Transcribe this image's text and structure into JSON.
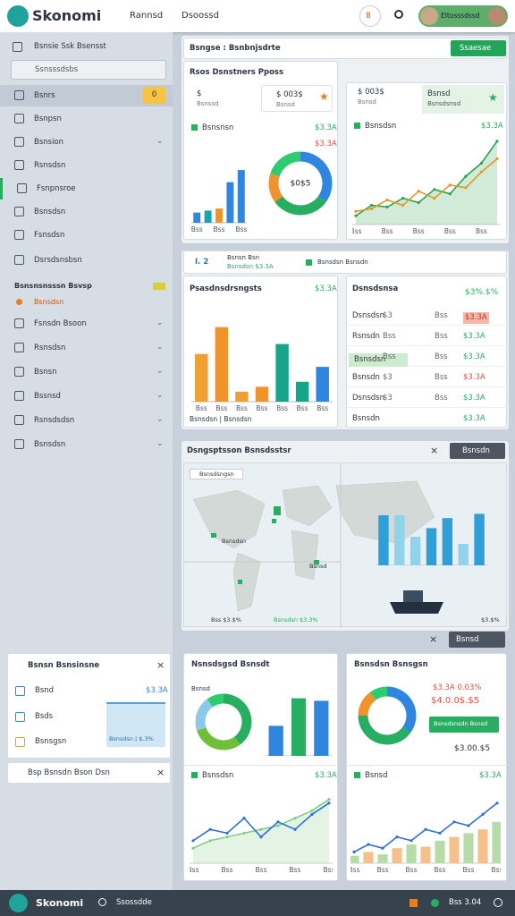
{
  "topbar": {
    "brand": "Skonomi",
    "nav": [
      "Rannsd",
      "Dsoossd"
    ],
    "badge": "8",
    "user": "Eltosssdssd"
  },
  "sidebar": {
    "heading": "Bsnsie Ssk Bsensst",
    "search": "Ssnsssdsbs",
    "items": [
      {
        "label": "Bsnrs",
        "badge": "0"
      },
      {
        "label": "Bsnpsn"
      },
      {
        "label": "Bsnsion"
      },
      {
        "label": "Rsnsdsn"
      },
      {
        "label": "Fsnpnsroe"
      },
      {
        "label": "Bsnsdsn"
      },
      {
        "label": "Fsnsdsn"
      },
      {
        "label": "Dsrsdsnsbsn"
      }
    ],
    "section": "Bsnsnsnsssn Bsvsp",
    "section_item": "Bsnsdsn",
    "items2": [
      "Fsnsdn Bsoon",
      "Rsnsdsn",
      "Bsnsn",
      "Bssnsd",
      "Rsnsdsdsn",
      "Bsnsdsn"
    ],
    "widget": {
      "title": "Bsnsn Bsnsinsne",
      "rows": [
        {
          "label": "Bsnd",
          "value": "$3.3A"
        },
        {
          "label": "Bsds"
        },
        {
          "label": "Bsnsgsn"
        }
      ],
      "bar": "Bsnsdsn | $.3%"
    },
    "search2": "Bsp Bsnsdn Bson Dsn"
  },
  "panel_a": {
    "header": "Bsngse : Bsnbnjsdrte",
    "button": "Ssaesae",
    "title": "Rsos Dsnstners Pposs",
    "stats": [
      {
        "value": "$",
        "sub": "Bsnssd"
      },
      {
        "value": "$ 003$",
        "sub": "Bsnsd"
      },
      {
        "value": "$ 003$",
        "sub": "Bsnsd"
      },
      {
        "value": "Bsnsd",
        "sub": "Bsnsdsnsd"
      }
    ],
    "legend_left": {
      "label": "Bsnsnsn",
      "value": "$3.3A"
    },
    "donut_value": "$3.3A",
    "legend_right": {
      "label": "Bsnsdsn",
      "value": "$3.3A"
    }
  },
  "panel_b": {
    "header": "I. 2",
    "header_title": "Bsnsn Bsn",
    "header_sub": "Bsnsdsn $3.3A",
    "header_tag": "Bsnsdsn Bsnsdn",
    "title": "Psasdnsdrsngsts",
    "value": "$3.3A",
    "footer": "Bsnsdsn | Bsnsdsn",
    "table": {
      "title": "Dsnsdsnsa",
      "value": "$3%.$%",
      "rows": [
        [
          "Dsnsdsn",
          "$3",
          "Bss",
          "$3.3A"
        ],
        [
          "Rsnsdn",
          "Bss",
          "Bss",
          "$3.3A"
        ],
        [
          "Bsnsdsn",
          "Bss",
          "Bss",
          "$3.3A"
        ],
        [
          "Bsnsdn",
          "$3",
          "Bss",
          "$3.3A"
        ],
        [
          "Dsnsdsn",
          "$3",
          "Bss",
          "$3.3A"
        ],
        [
          "Bsnsdn",
          "",
          "",
          "$3.3A"
        ]
      ]
    }
  },
  "panel_c": {
    "header": "Dsngsptsson Bsnsdsstsr",
    "button": "Bsnsdn",
    "map_tag": "Bsnsdsngsn",
    "labels": [
      "Bsnsdsn",
      "Bsnsd"
    ],
    "legend": [
      "Bss $3.$%",
      "Bsnsdsn $3.3%",
      "$3.$%"
    ],
    "button2": "Bsnsd"
  },
  "panel_d": {
    "left_title": "Nsnsdsgsd Bsnsdt",
    "left_tag": "Bsnsd",
    "left_legend": {
      "label": "Bsnsdsn",
      "value": "$3.3A"
    },
    "right_title": "Bsnsdsn Bsnsgsn",
    "right_values": [
      "$3.3A 0.03%",
      "$4.0.0$.$5"
    ],
    "right_button": "Bsnsdsnsdn Bsnsd",
    "right_total": "$3.00.$5",
    "right_legend": {
      "label": "Bsnsd",
      "value": "$3.3A"
    }
  },
  "bottombar": {
    "brand": "Skonomi",
    "search": "Ssossdde",
    "status": "Bss 3.04"
  },
  "chart_data": [
    {
      "type": "bar",
      "values": [
        10,
        12,
        14,
        40,
        52
      ],
      "colors": [
        "#2e86de",
        "#17a2b8",
        "#f0932b",
        "#2e86de",
        "#2e86de"
      ],
      "ylim": [
        0,
        60
      ],
      "categories": [
        "Bss",
        null,
        "Bss",
        null,
        "Bss"
      ]
    },
    {
      "type": "donut",
      "values": [
        35,
        30,
        15,
        20
      ],
      "colors": [
        "#2e86de",
        "#27ae60",
        "#f0932b",
        "#2ecc71"
      ],
      "center": "$0$5"
    },
    {
      "type": "line",
      "categories": [
        "Bss",
        null,
        "Bss",
        null,
        "Bss",
        null,
        "Bss",
        null,
        "Bss",
        null
      ],
      "ylim": [
        0,
        100
      ],
      "area": true,
      "series": [
        {
          "color": "#2ea44f",
          "values": [
            10,
            22,
            20,
            30,
            25,
            40,
            35,
            55,
            70,
            95
          ]
        },
        {
          "color": "#e09a2b",
          "values": [
            15,
            18,
            28,
            22,
            38,
            30,
            45,
            42,
            60,
            75
          ]
        }
      ]
    },
    {
      "type": "bar",
      "values": [
        48,
        75,
        10,
        15,
        58,
        20,
        35
      ],
      "colors": [
        "#f0a030",
        "#f0932b",
        "#f0a030",
        "#f0932b",
        "#17a589",
        "#17a589",
        "#2e86de"
      ],
      "ylim": [
        0,
        90
      ],
      "categories": [
        "Bss",
        "Bss",
        "Bss",
        "Bss",
        "Bss",
        "Bss",
        "Bss"
      ]
    },
    {
      "type": "bar",
      "values": [
        70,
        70,
        40,
        52,
        66,
        30,
        72
      ],
      "colors": [
        "#2e9fd8",
        "#8fd3ec",
        "#8fd3ec",
        "#2e9fd8",
        "#2e9fd8",
        "#8fd3ec",
        "#2e9fd8"
      ],
      "ylim": [
        0,
        100
      ]
    },
    {
      "type": "donut",
      "values": [
        40,
        30,
        20,
        10
      ],
      "colors": [
        "#27ae60",
        "#6fbf3a",
        "#8cc8e8",
        "#2ecc71"
      ]
    },
    {
      "type": "bar",
      "values": [
        48,
        92,
        88
      ],
      "colors": [
        "#2e86de",
        "#27ae60",
        "#2e86de"
      ],
      "ylim": [
        0,
        100
      ]
    },
    {
      "type": "line",
      "ylim": [
        0,
        100
      ],
      "area": true,
      "categories": [
        "Bss",
        null,
        "Bss",
        null,
        "Bss",
        null,
        "Bss",
        null,
        "Bss"
      ],
      "series": [
        {
          "color": "#7fcf8a",
          "values": [
            20,
            30,
            35,
            40,
            45,
            50,
            60,
            70,
            85
          ]
        },
        {
          "color": "#2e6fd8",
          "values": [
            30,
            45,
            40,
            60,
            35,
            55,
            45,
            65,
            80
          ]
        }
      ]
    },
    {
      "type": "donut",
      "values": [
        35,
        40,
        15,
        10
      ],
      "colors": [
        "#2e86de",
        "#27ae60",
        "#f0932b",
        "#2ecc71"
      ]
    },
    {
      "type": "combo",
      "values": [
        10,
        15,
        12,
        20,
        25,
        22,
        30,
        35,
        40,
        45,
        55
      ],
      "colors": [
        "#b7dca8",
        "#f5c08a"
      ],
      "ylim": [
        0,
        100
      ],
      "categories": [
        "Bss",
        null,
        "Bss",
        null,
        "Bss",
        null,
        "Bss",
        null,
        "Bss",
        null,
        "Bss"
      ],
      "series": [
        {
          "color": "#2e6fd8",
          "values": [
            15,
            25,
            20,
            35,
            30,
            45,
            40,
            55,
            50,
            65,
            80
          ]
        }
      ]
    }
  ]
}
